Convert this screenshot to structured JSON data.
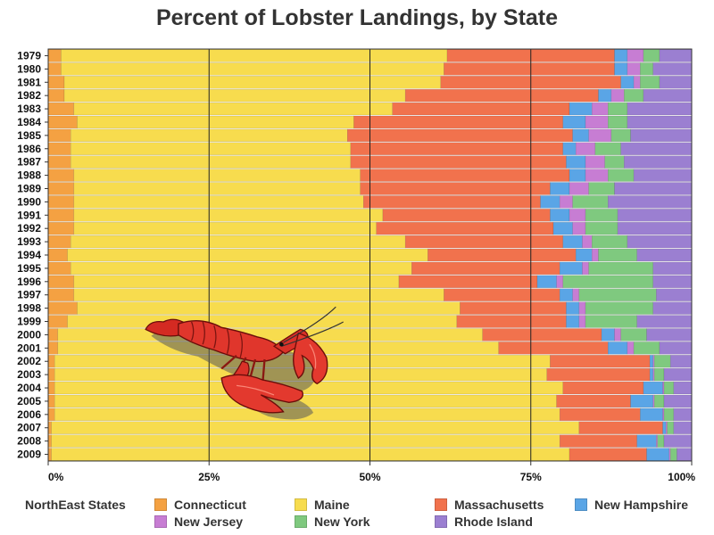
{
  "chart_data": {
    "type": "bar",
    "orientation": "horizontal",
    "stacked": true,
    "title": "Percent of Lobster Landings, by State",
    "categories": [
      "1979",
      "1980",
      "1981",
      "1982",
      "1983",
      "1984",
      "1985",
      "1986",
      "1987",
      "1988",
      "1989",
      "1990",
      "1991",
      "1992",
      "1993",
      "1994",
      "1995",
      "1996",
      "1997",
      "1998",
      "1999",
      "2000",
      "2001",
      "2002",
      "2003",
      "2004",
      "2005",
      "2006",
      "2007",
      "2008",
      "2009"
    ],
    "series": [
      {
        "name": "Connecticut",
        "color": "#F4A142",
        "values": [
          2,
          2,
          2.5,
          2.5,
          4,
          4.5,
          3.5,
          3.5,
          3.5,
          4,
          4,
          4,
          4,
          4,
          3.5,
          3,
          3.5,
          4,
          4,
          4.5,
          3,
          1.5,
          1.5,
          1,
          1,
          1,
          1,
          1,
          0.5,
          0.5,
          0.5
        ]
      },
      {
        "name": "Maine",
        "color": "#F7DC4E",
        "values": [
          60,
          59.5,
          58.5,
          53,
          49.5,
          43,
          43,
          43.5,
          43.5,
          44.5,
          44.5,
          45,
          48,
          47,
          52,
          56,
          53,
          50.5,
          57.5,
          59.5,
          60.5,
          66,
          68.5,
          77,
          76.5,
          79,
          78,
          78.5,
          82,
          79,
          80.5
        ]
      },
      {
        "name": "Massachusetts",
        "color": "#F1724D",
        "values": [
          26,
          26.5,
          28,
          30,
          27.5,
          32.5,
          35,
          33,
          33.5,
          32.5,
          29.5,
          27.5,
          26,
          27.5,
          24.5,
          23,
          23,
          21.5,
          18,
          16.5,
          17,
          18.5,
          17,
          15.5,
          16,
          12.5,
          11.5,
          12.5,
          13,
          12,
          12
        ]
      },
      {
        "name": "New Hampshire",
        "color": "#5AA5E6",
        "values": [
          2,
          2,
          2,
          2,
          3.5,
          3.5,
          2.5,
          2,
          3,
          2.5,
          3,
          3,
          3,
          3,
          3,
          2.5,
          3.5,
          3,
          2,
          2,
          2,
          2,
          3,
          0.5,
          0.5,
          3,
          3.5,
          3.5,
          0.5,
          3,
          3.5
        ]
      },
      {
        "name": "New Jersey",
        "color": "#C77DD3",
        "values": [
          2.5,
          2,
          1,
          2,
          2.5,
          3.5,
          3.5,
          3,
          3,
          3.5,
          3,
          2,
          2.5,
          2,
          1.5,
          1,
          1,
          1,
          1,
          1,
          1,
          1,
          1,
          0.2,
          0.2,
          0.2,
          0.2,
          0.2,
          0.2,
          0.2,
          0.2
        ]
      },
      {
        "name": "New York",
        "color": "#7FC97F",
        "values": [
          2.5,
          2,
          3,
          3,
          3,
          3,
          3,
          4,
          3,
          4,
          4,
          5.5,
          5,
          5,
          5.5,
          6,
          10,
          14,
          12,
          10.5,
          8,
          4,
          4,
          2.5,
          1.5,
          1.5,
          1.5,
          1.5,
          1,
          1,
          1
        ]
      },
      {
        "name": "Rhode Island",
        "color": "#9B7FD1",
        "values": [
          5,
          6,
          5,
          7.5,
          10,
          10,
          9.5,
          11,
          10.5,
          9,
          12,
          13,
          11.5,
          11.5,
          10,
          8.5,
          6,
          6,
          5.5,
          6,
          8.5,
          7,
          5,
          3.3,
          4.3,
          2.8,
          4.3,
          2.8,
          2.8,
          4.3,
          2.3
        ]
      }
    ],
    "xlim": [
      0,
      100
    ],
    "xticks": [
      "0%",
      "25%",
      "50%",
      "75%",
      "100%"
    ],
    "grid": "vertical at 25%, 50%, 75%",
    "legend": {
      "title": "NorthEast States",
      "placement": "bottom"
    }
  }
}
